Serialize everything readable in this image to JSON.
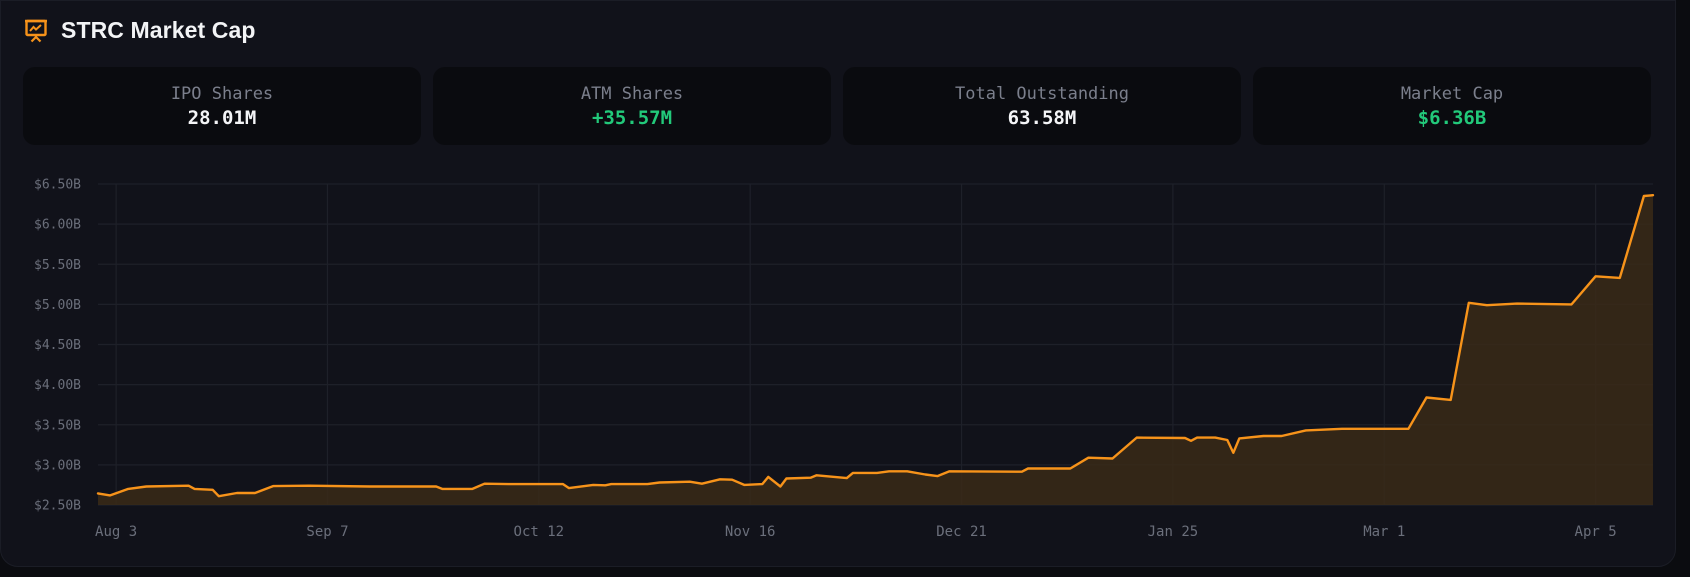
{
  "header": {
    "title": "STRC Market Cap",
    "icon": "presentation-chart-icon",
    "accent_color": "#f7931a"
  },
  "stats": [
    {
      "label": "IPO Shares",
      "value": "28.01M",
      "tone": "neutral"
    },
    {
      "label": "ATM Shares",
      "value": "+35.57M",
      "tone": "positive"
    },
    {
      "label": "Total Outstanding",
      "value": "63.58M",
      "tone": "neutral"
    },
    {
      "label": "Market Cap",
      "value": "$6.36B",
      "tone": "positive"
    }
  ],
  "colors": {
    "line": "#f7931a",
    "fill": "#3a2a18",
    "positive": "#22c97a",
    "grid": "#1e2029"
  },
  "chart_data": {
    "type": "area",
    "title": "STRC Market Cap",
    "xlabel": "",
    "ylabel": "Market Cap",
    "ylim": [
      2.5,
      6.5
    ],
    "grid": true,
    "legend": "none",
    "y_ticks": [
      "$6.50B",
      "$6.00B",
      "$5.50B",
      "$5.00B",
      "$4.50B",
      "$4.00B",
      "$3.50B",
      "$3.00B",
      "$2.50B"
    ],
    "y_tick_values": [
      6.5,
      6.0,
      5.5,
      5.0,
      4.5,
      4.0,
      3.5,
      3.0,
      2.5
    ],
    "x_ticks": [
      "Aug 3",
      "Sep 7",
      "Oct 12",
      "Nov 16",
      "Dec 21",
      "Jan 25",
      "Mar 1",
      "Apr 5"
    ],
    "x_tick_day_offsets": [
      3,
      38,
      73,
      108,
      143,
      178,
      213,
      248
    ],
    "x_domain_days": [
      0,
      257.5
    ],
    "series": [
      {
        "name": "Market Cap ($B)",
        "points_day_value": [
          [
            0,
            2.645
          ],
          [
            2,
            2.62
          ],
          [
            5,
            2.7
          ],
          [
            8,
            2.73
          ],
          [
            15,
            2.74
          ],
          [
            16,
            2.7
          ],
          [
            19,
            2.69
          ],
          [
            20,
            2.61
          ],
          [
            23,
            2.65
          ],
          [
            26,
            2.65
          ],
          [
            29,
            2.735
          ],
          [
            35,
            2.74
          ],
          [
            45,
            2.73
          ],
          [
            50,
            2.73
          ],
          [
            56,
            2.73
          ],
          [
            57,
            2.7
          ],
          [
            62,
            2.7
          ],
          [
            64,
            2.765
          ],
          [
            68,
            2.76
          ],
          [
            77,
            2.76
          ],
          [
            78,
            2.71
          ],
          [
            82,
            2.75
          ],
          [
            84,
            2.745
          ],
          [
            85,
            2.76
          ],
          [
            91,
            2.76
          ],
          [
            93,
            2.78
          ],
          [
            98,
            2.79
          ],
          [
            100,
            2.765
          ],
          [
            103,
            2.82
          ],
          [
            105,
            2.815
          ],
          [
            107,
            2.75
          ],
          [
            110,
            2.76
          ],
          [
            111,
            2.85
          ],
          [
            113,
            2.73
          ],
          [
            114,
            2.83
          ],
          [
            118,
            2.84
          ],
          [
            119,
            2.87
          ],
          [
            124,
            2.835
          ],
          [
            125,
            2.9
          ],
          [
            129,
            2.9
          ],
          [
            131,
            2.92
          ],
          [
            134,
            2.92
          ],
          [
            137,
            2.88
          ],
          [
            139,
            2.86
          ],
          [
            141,
            2.92
          ],
          [
            153,
            2.915
          ],
          [
            154,
            2.955
          ],
          [
            161,
            2.955
          ],
          [
            164,
            3.09
          ],
          [
            168,
            3.08
          ],
          [
            172,
            3.34
          ],
          [
            180,
            3.335
          ],
          [
            181,
            3.3
          ],
          [
            182,
            3.34
          ],
          [
            185,
            3.34
          ],
          [
            187,
            3.31
          ],
          [
            188,
            3.15
          ],
          [
            189,
            3.33
          ],
          [
            193,
            3.36
          ],
          [
            196,
            3.36
          ],
          [
            200,
            3.43
          ],
          [
            206,
            3.45
          ],
          [
            217,
            3.45
          ],
          [
            220,
            3.84
          ],
          [
            224,
            3.81
          ],
          [
            227,
            5.02
          ],
          [
            230,
            4.99
          ],
          [
            235,
            5.01
          ],
          [
            244,
            5.0
          ],
          [
            248,
            5.35
          ],
          [
            252,
            5.33
          ],
          [
            256,
            6.35
          ],
          [
            257.5,
            6.36
          ]
        ]
      }
    ]
  }
}
